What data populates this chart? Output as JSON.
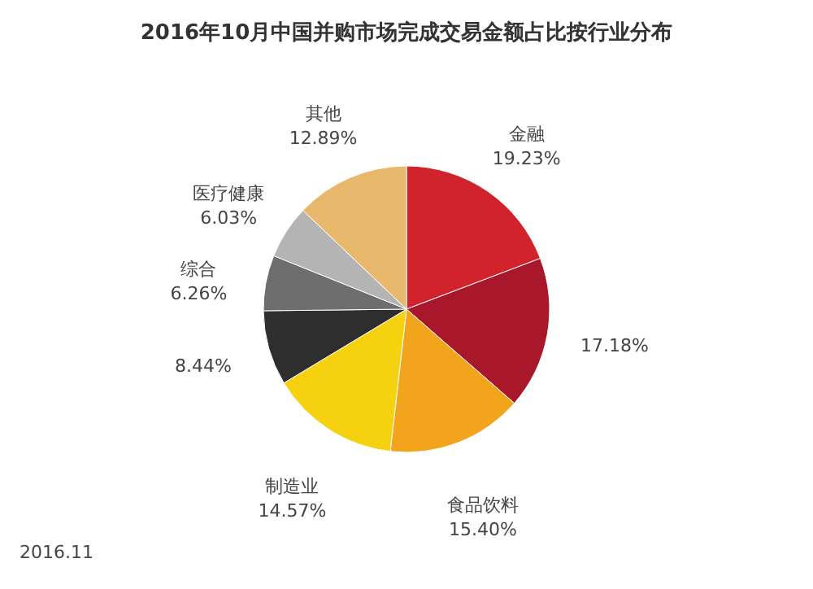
{
  "chart_data": {
    "type": "pie",
    "title": "2016年10月中国并购市场完成交易金额占比按行业分布",
    "categories": [
      "金融",
      null,
      "食品饮料",
      "制造业",
      null,
      "综合",
      "医疗健康",
      "其他"
    ],
    "values": [
      19.23,
      17.18,
      15.4,
      14.57,
      8.44,
      6.26,
      6.03,
      12.89
    ],
    "value_labels": [
      "19.23%",
      "17.18%",
      "15.40%",
      "14.57%",
      "8.44%",
      "6.26%",
      "6.03%",
      "12.89%"
    ],
    "colors": [
      "#d0232b",
      "#a8182a",
      "#f2a51c",
      "#f5d10f",
      "#2e2e2e",
      "#6e6e6e",
      "#b4b4b4",
      "#e8b86c"
    ],
    "annotations": [
      "2016.11"
    ]
  }
}
